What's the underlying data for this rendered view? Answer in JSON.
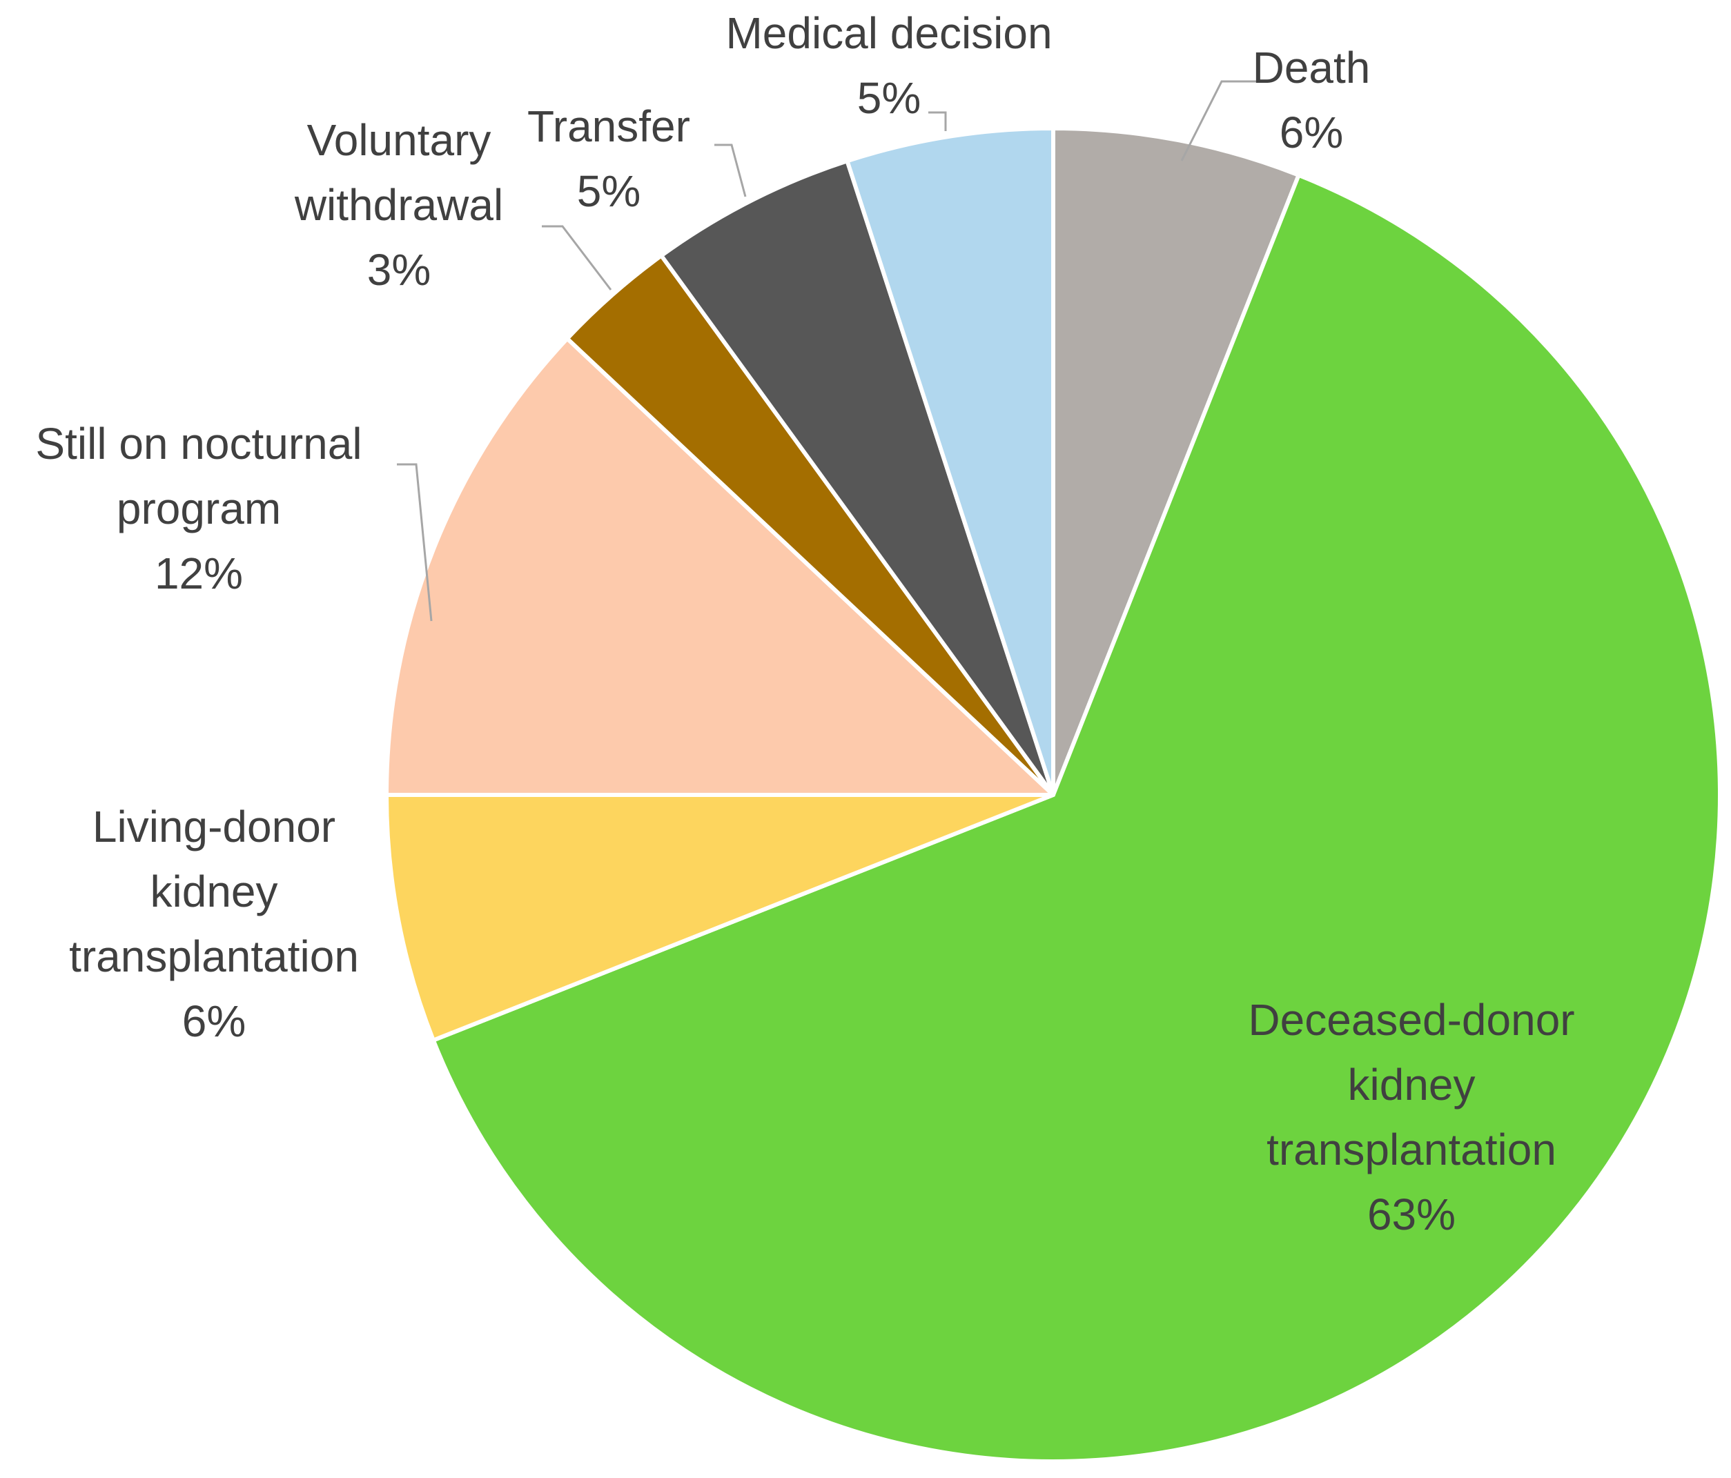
{
  "chart_data": {
    "type": "pie",
    "title": "",
    "slices": [
      {
        "label": [
          "Death"
        ],
        "pct_label": "6%",
        "value": 6,
        "color": "#b1aca8"
      },
      {
        "label": [
          "Deceased-donor",
          "kidney",
          "transplantation"
        ],
        "pct_label": "63%",
        "value": 63,
        "color": "#6dd33f"
      },
      {
        "label": [
          "Living-donor",
          "kidney",
          "transplantation"
        ],
        "pct_label": "6%",
        "value": 6,
        "color": "#fdd55e"
      },
      {
        "label": [
          "Still on nocturnal",
          "program"
        ],
        "pct_label": "12%",
        "value": 12,
        "color": "#fdcaac"
      },
      {
        "label": [
          "Voluntary",
          "withdrawal"
        ],
        "pct_label": "3%",
        "value": 3,
        "color": "#a46e00"
      },
      {
        "label": [
          "Transfer"
        ],
        "pct_label": "5%",
        "value": 5,
        "color": "#575757"
      },
      {
        "label": [
          "Medical decision"
        ],
        "pct_label": "5%",
        "value": 5,
        "color": "#b1d7ee"
      }
    ],
    "start_angle": "12 o'clock",
    "direction": "clockwise",
    "legend": "none"
  }
}
